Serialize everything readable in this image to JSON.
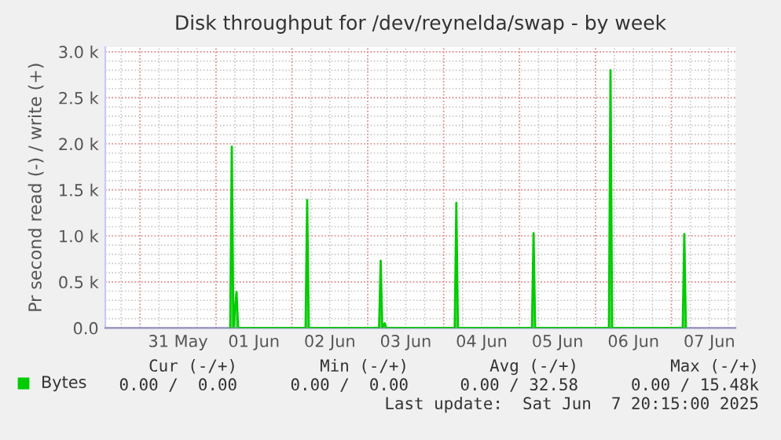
{
  "chart_data": {
    "type": "area",
    "title": "Disk throughput for /dev/reynelda/swap - by week",
    "ylabel": "Pr second read (-) / write (+)",
    "series": [
      {
        "name": "Bytes",
        "color": "#00cc00",
        "x": [
          "2025-06-01T04:30",
          "2025-06-01T05:00",
          "2025-06-01T05:30",
          "2025-06-01T06:30",
          "2025-06-01T07:00",
          "2025-06-02T04:20",
          "2025-06-02T04:50",
          "2025-06-02T05:20",
          "2025-06-03T03:35",
          "2025-06-03T04:05",
          "2025-06-03T04:35",
          "2025-06-03T05:20",
          "2025-06-03T05:50",
          "2025-06-04T03:30",
          "2025-06-04T04:00",
          "2025-06-04T04:30",
          "2025-06-05T03:55",
          "2025-06-05T04:25",
          "2025-06-05T04:55",
          "2025-06-06T04:15",
          "2025-06-06T04:45",
          "2025-06-06T05:15",
          "2025-06-07T03:35",
          "2025-06-07T04:05",
          "2025-06-07T04:35"
        ],
        "values": [
          0,
          1970,
          0,
          390,
          0,
          0,
          1390,
          0,
          0,
          730,
          0,
          50,
          0,
          0,
          1360,
          0,
          0,
          1030,
          0,
          0,
          2800,
          0,
          0,
          1020,
          0
        ]
      }
    ],
    "xlim": [
      "2025-05-30T13:00",
      "2025-06-07T20:15"
    ],
    "xticks": [
      {
        "value": "2025-05-31T00:00",
        "label": null
      },
      {
        "value": "2025-05-31T12:00",
        "label": "31 May"
      },
      {
        "value": "2025-06-01T00:00",
        "label": null
      },
      {
        "value": "2025-06-01T12:00",
        "label": "01 Jun"
      },
      {
        "value": "2025-06-02T00:00",
        "label": null
      },
      {
        "value": "2025-06-02T12:00",
        "label": "02 Jun"
      },
      {
        "value": "2025-06-03T00:00",
        "label": null
      },
      {
        "value": "2025-06-03T12:00",
        "label": "03 Jun"
      },
      {
        "value": "2025-06-04T00:00",
        "label": null
      },
      {
        "value": "2025-06-04T12:00",
        "label": "04 Jun"
      },
      {
        "value": "2025-06-05T00:00",
        "label": null
      },
      {
        "value": "2025-06-05T12:00",
        "label": "05 Jun"
      },
      {
        "value": "2025-06-06T00:00",
        "label": null
      },
      {
        "value": "2025-06-06T12:00",
        "label": "06 Jun"
      },
      {
        "value": "2025-06-07T00:00",
        "label": null
      },
      {
        "value": "2025-06-07T12:00",
        "label": "07 Jun"
      }
    ],
    "ylim": [
      0,
      3050
    ],
    "yticks": [
      {
        "value": 0,
        "label": "0.0"
      },
      {
        "value": 500,
        "label": "0.5 k"
      },
      {
        "value": 1000,
        "label": "1.0 k"
      },
      {
        "value": 1500,
        "label": "1.5 k"
      },
      {
        "value": 2000,
        "label": "2.0 k"
      },
      {
        "value": 2500,
        "label": "2.5 k"
      },
      {
        "value": 3000,
        "label": "3.0 k"
      }
    ],
    "grid": true,
    "legend": "bottom left",
    "annotations": [
      "Cur (-/+)",
      "Min (-/+)",
      "Avg (-/+)",
      "Max (-/+)",
      "0.00 /  0.00",
      "0.00 /  0.00",
      "0.00 / 32.58",
      "0.00 / 15.48k",
      "Last update:  Sat Jun  7 20:15:00 2025"
    ]
  }
}
